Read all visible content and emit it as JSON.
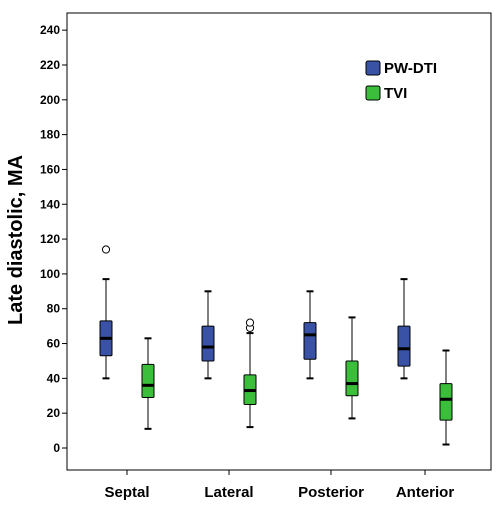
{
  "chart_data": {
    "type": "boxplot",
    "title": "",
    "xlabel": "",
    "ylabel": "Late diastolic, MA",
    "ylim": [
      -8,
      248
    ],
    "yticks": [
      0,
      20,
      40,
      60,
      80,
      100,
      120,
      140,
      160,
      180,
      200,
      220,
      240
    ],
    "categories": [
      "Septal",
      "Lateral",
      "Posterior",
      "Anterior"
    ],
    "legend_position": "top-right",
    "series": [
      {
        "name": "PW-DTI",
        "color": "#3a52a6",
        "boxes": [
          {
            "whisker_low": 40,
            "q1": 53,
            "median": 63,
            "q3": 73,
            "whisker_high": 97,
            "outliers": [
              114
            ]
          },
          {
            "whisker_low": 40,
            "q1": 50,
            "median": 58,
            "q3": 70,
            "whisker_high": 90,
            "outliers": []
          },
          {
            "whisker_low": 40,
            "q1": 51,
            "median": 65,
            "q3": 72,
            "whisker_high": 90,
            "outliers": []
          },
          {
            "whisker_low": 40,
            "q1": 47,
            "median": 57,
            "q3": 70,
            "whisker_high": 97,
            "outliers": []
          }
        ]
      },
      {
        "name": "TVI",
        "color": "#3bbf3b",
        "boxes": [
          {
            "whisker_low": 11,
            "q1": 29,
            "median": 36,
            "q3": 48,
            "whisker_high": 63,
            "outliers": []
          },
          {
            "whisker_low": 12,
            "q1": 25,
            "median": 33,
            "q3": 42,
            "whisker_high": 66,
            "outliers": [
              69,
              72
            ]
          },
          {
            "whisker_low": 17,
            "q1": 30,
            "median": 37,
            "q3": 50,
            "whisker_high": 75,
            "outliers": []
          },
          {
            "whisker_low": 2,
            "q1": 16,
            "median": 28,
            "q3": 37,
            "whisker_high": 56,
            "outliers": []
          }
        ]
      }
    ]
  }
}
